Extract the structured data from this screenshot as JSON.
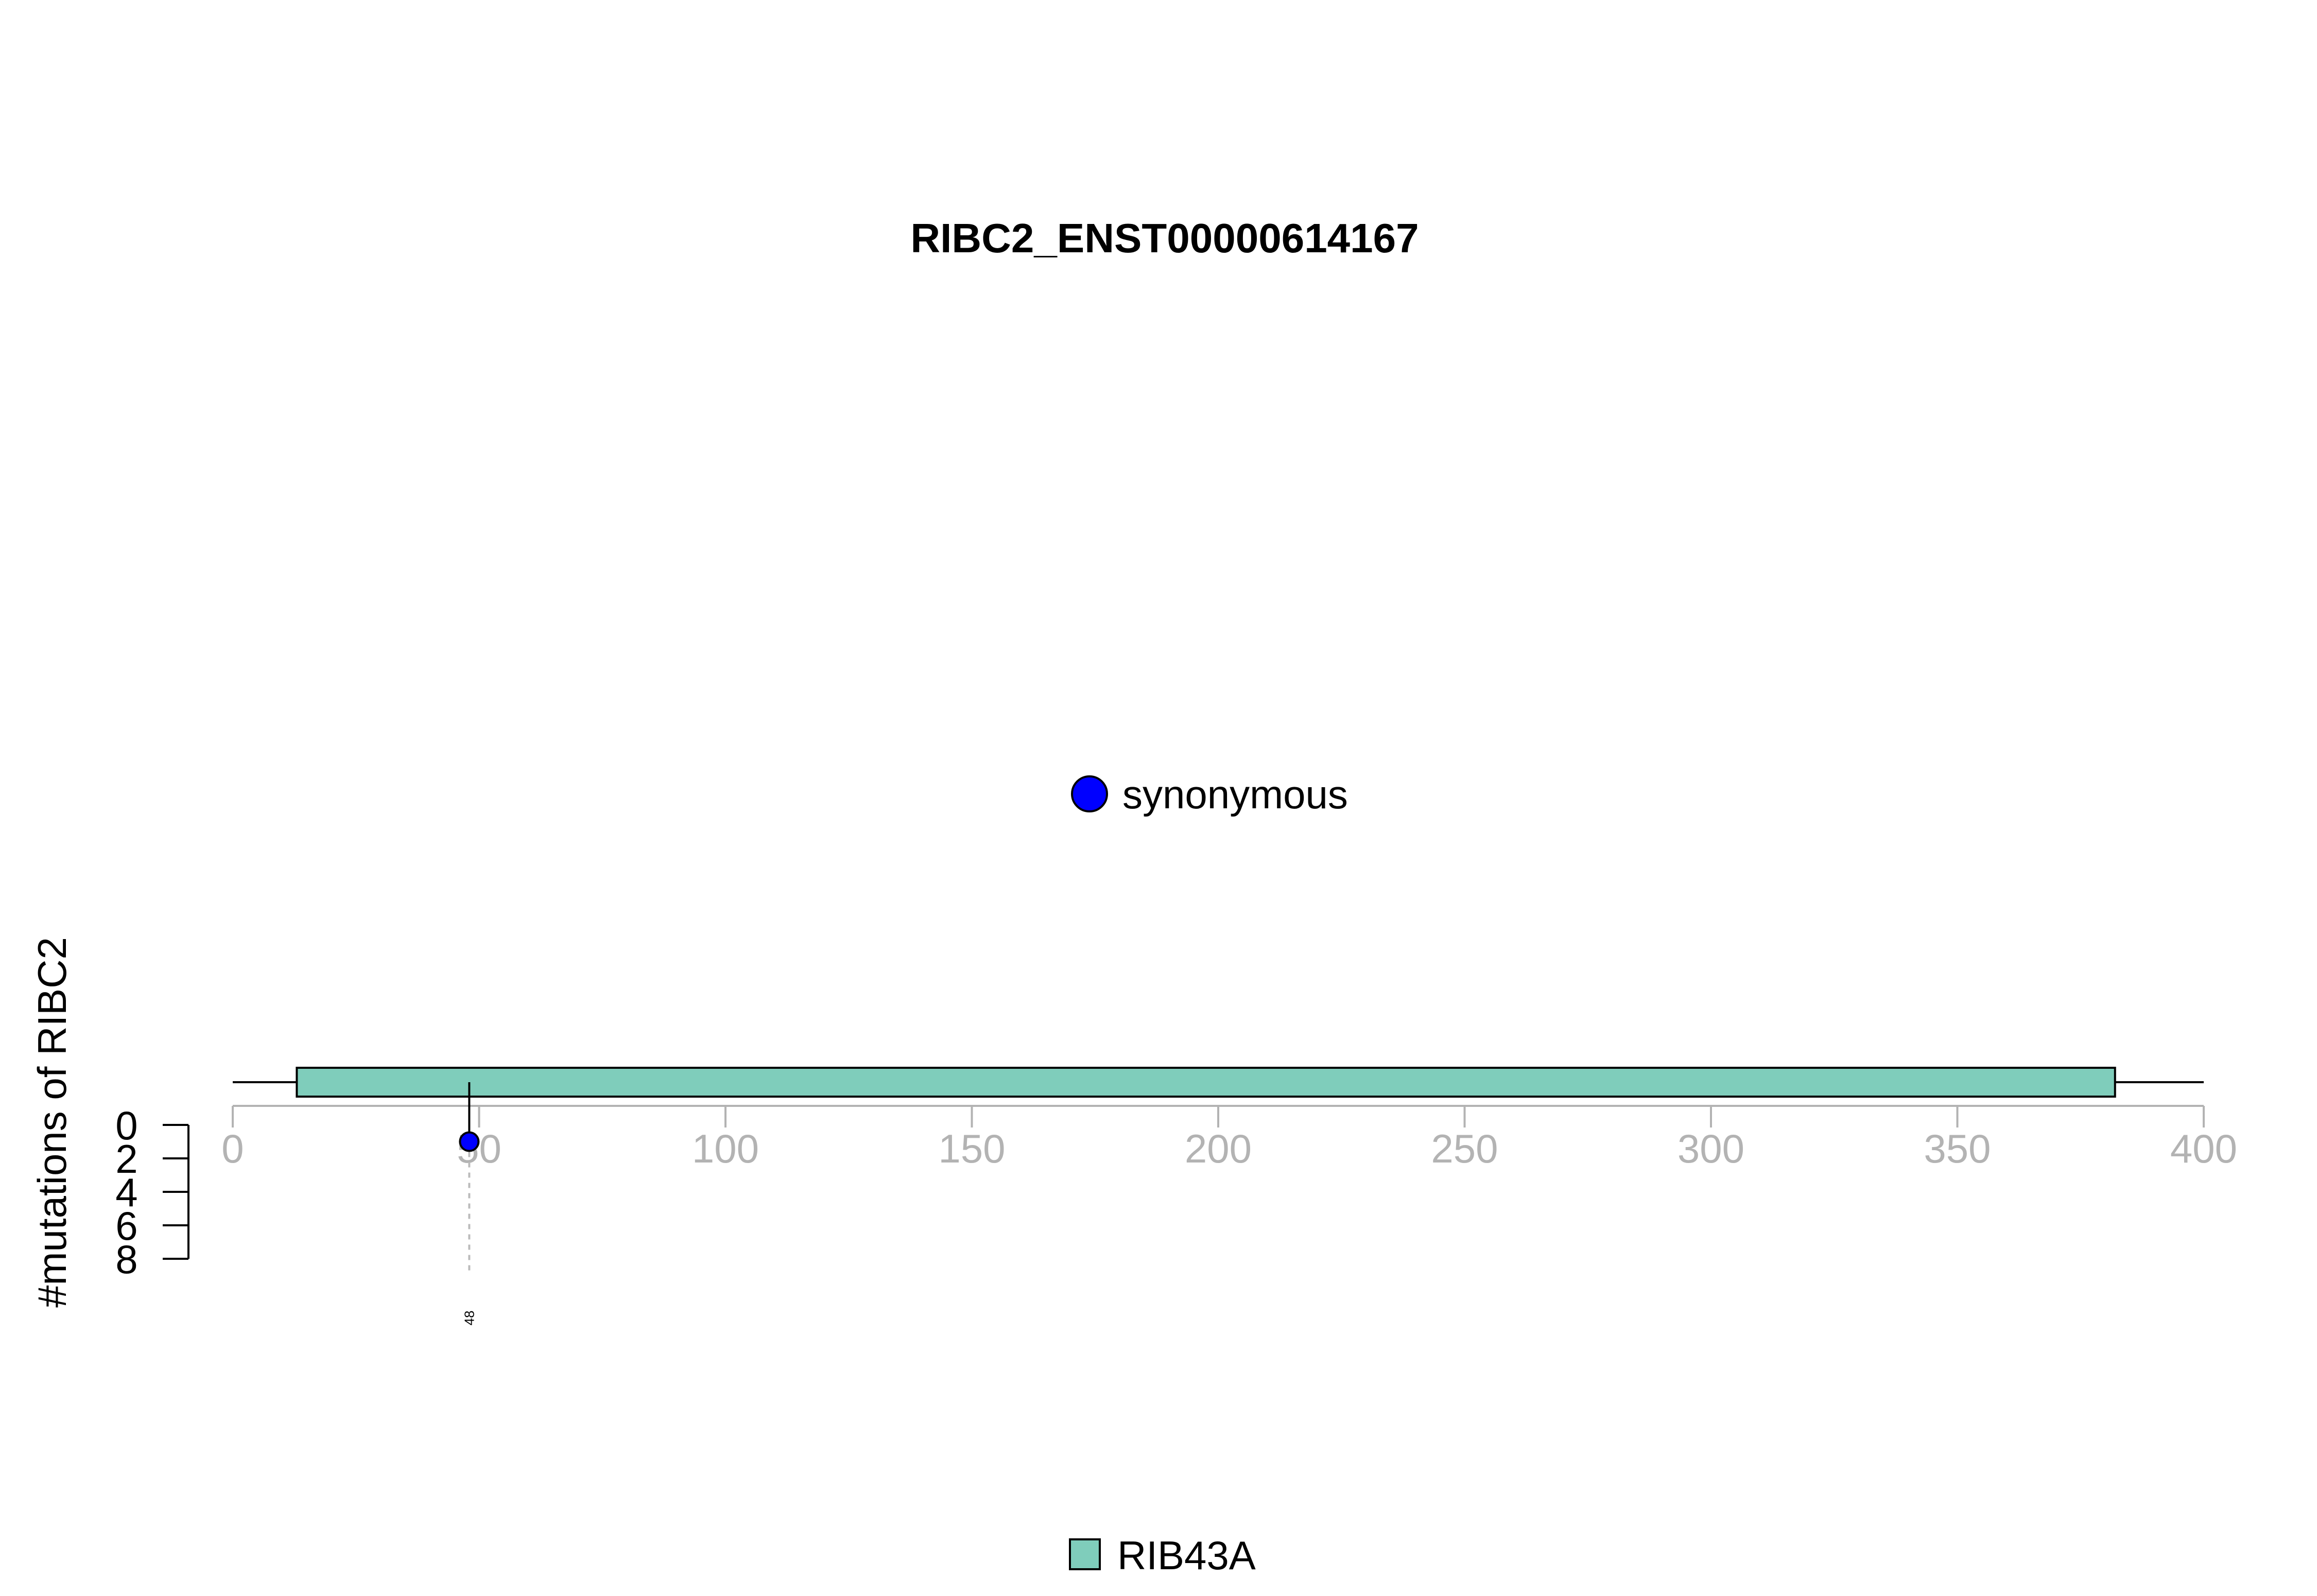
{
  "chart_data": {
    "type": "lollipop",
    "title": "RIBC2_ENST00000614167",
    "ylabel": "#mutations of RIBC2",
    "x_axis": {
      "range": [
        0,
        400
      ],
      "ticks": [
        "0",
        "50",
        "100",
        "150",
        "200",
        "250",
        "300",
        "350",
        "400"
      ],
      "tick_color": "#b3b3b3"
    },
    "y_axis": {
      "range": [
        0,
        8
      ],
      "direction": "down",
      "ticks": [
        "0",
        "2",
        "4",
        "6",
        "8"
      ]
    },
    "protein": {
      "length": 400
    },
    "domains": [
      {
        "name": "RIB43A",
        "start": 13,
        "end": 382,
        "color": "#7fcdbb"
      }
    ],
    "mutations": [
      {
        "position": 48,
        "count": 1,
        "label": "48",
        "type": "synonymous",
        "color": "#0000ff"
      }
    ],
    "legend_mutation_types": [
      {
        "label": "synonymous",
        "color": "#0000ff"
      }
    ],
    "legend_domains": [
      {
        "label": "RIB43A",
        "color": "#7fcdbb"
      }
    ]
  }
}
